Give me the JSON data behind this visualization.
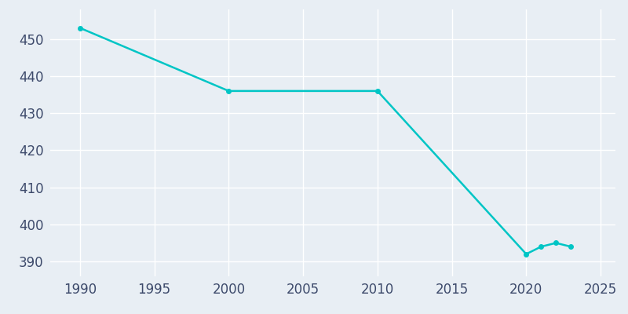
{
  "years": [
    1990,
    2000,
    2010,
    2020,
    2021,
    2022,
    2023
  ],
  "population": [
    453,
    436,
    436,
    392,
    394,
    395,
    394
  ],
  "line_color": "#00C5C5",
  "marker_color": "#00C5C5",
  "background_color": "#E8EEF4",
  "grid_color": "#FFFFFF",
  "xlim": [
    1988,
    2026
  ],
  "ylim": [
    386,
    458
  ],
  "xticks": [
    1990,
    1995,
    2000,
    2005,
    2010,
    2015,
    2020,
    2025
  ],
  "yticks": [
    390,
    400,
    410,
    420,
    430,
    440,
    450
  ],
  "tick_color": "#3D4A6B",
  "tick_fontsize": 12,
  "linewidth": 1.8,
  "markersize": 4.0
}
